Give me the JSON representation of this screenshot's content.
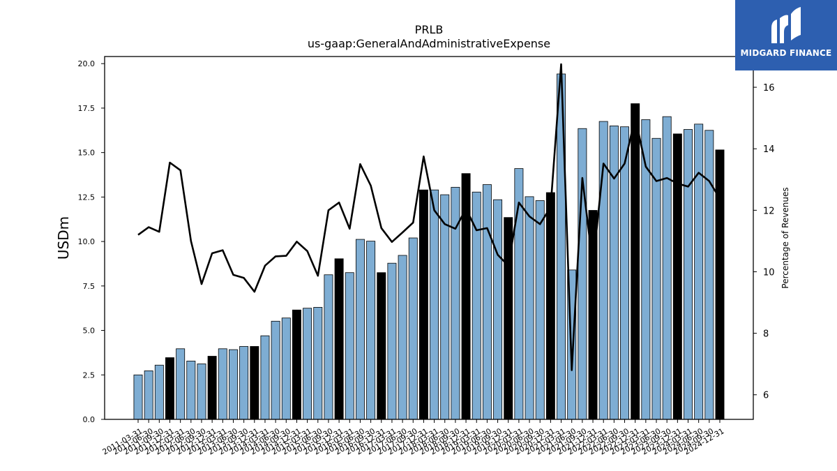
{
  "chart_data": {
    "type": "bar",
    "title": "PRLB",
    "subtitle": "us-gaap:GeneralAndAdministrativeExpense",
    "ylabel": "USDm",
    "y2label": "Percentage of Revenues",
    "ylim": [
      0,
      20.4
    ],
    "y2lim": [
      5.2,
      17.0
    ],
    "yticks": [
      "0.0",
      "2.5",
      "5.0",
      "7.5",
      "10.0",
      "12.5",
      "15.0",
      "17.5",
      "20.0"
    ],
    "y2ticks": [
      "6",
      "8",
      "10",
      "12",
      "14",
      "16"
    ],
    "categories": [
      "2011-03-31",
      "2011-06-30",
      "2011-09-30",
      "2011-12-31",
      "2012-03-31",
      "2012-06-30",
      "2012-09-30",
      "2012-12-31",
      "2013-03-31",
      "2013-06-30",
      "2013-09-30",
      "2013-12-31",
      "2014-03-31",
      "2014-06-30",
      "2014-09-30",
      "2014-12-31",
      "2015-03-31",
      "2015-06-30",
      "2015-09-30",
      "2015-12-31",
      "2016-03-31",
      "2016-06-30",
      "2016-09-30",
      "2016-12-31",
      "2017-03-31",
      "2017-06-30",
      "2017-09-30",
      "2017-12-31",
      "2018-03-31",
      "2018-06-30",
      "2018-09-30",
      "2018-12-31",
      "2019-03-31",
      "2019-06-30",
      "2019-09-30",
      "2019-12-31",
      "2020-03-31",
      "2020-06-30",
      "2020-09-30",
      "2020-12-31",
      "2021-03-31",
      "2021-06-30",
      "2021-09-30",
      "2021-12-31",
      "2022-03-31",
      "2022-06-30",
      "2022-09-30",
      "2022-12-31",
      "2023-03-31",
      "2023-06-30",
      "2023-09-30",
      "2023-12-31",
      "2024-03-31",
      "2024-06-30",
      "2024-09-30",
      "2024-12-31"
    ],
    "series": [
      {
        "type": "bar",
        "values": [
          2.5,
          2.73,
          3.05,
          3.47,
          3.97,
          3.28,
          3.12,
          3.55,
          3.97,
          3.92,
          4.1,
          4.1,
          4.7,
          5.52,
          5.7,
          6.15,
          6.25,
          6.3,
          8.13,
          9.03,
          8.25,
          10.12,
          10.02,
          8.25,
          8.78,
          9.22,
          10.2,
          12.9,
          12.9,
          12.63,
          13.05,
          13.82,
          12.78,
          13.2,
          12.35,
          11.35,
          14.1,
          12.52,
          12.3,
          12.75,
          19.42,
          8.4,
          16.35,
          11.75,
          16.75,
          16.5,
          16.45,
          17.75,
          16.85,
          15.8,
          17.02,
          16.05,
          16.3,
          16.6,
          16.25,
          15.15
        ],
        "highlight_color": "#000000",
        "color": "#7eadd3"
      },
      {
        "type": "line",
        "values": [
          11.2,
          11.45,
          11.3,
          13.55,
          13.3,
          11.0,
          9.6,
          10.6,
          10.7,
          9.9,
          9.8,
          9.35,
          10.2,
          10.5,
          10.52,
          10.98,
          10.67,
          9.87,
          12.0,
          12.25,
          11.4,
          13.5,
          12.8,
          11.42,
          10.97,
          11.28,
          11.6,
          13.75,
          12.0,
          11.55,
          11.4,
          12.05,
          11.35,
          11.42,
          10.55,
          10.2,
          12.25,
          11.8,
          11.55,
          12.1,
          16.75,
          6.8,
          13.05,
          10.2,
          13.52,
          13.03,
          13.52,
          15.02,
          13.42,
          12.95,
          13.05,
          12.87,
          12.77,
          13.22,
          12.95,
          12.38
        ],
        "color": "#000000"
      }
    ],
    "highlight_indices": [
      3,
      7,
      11,
      15,
      19,
      23,
      27,
      31,
      35,
      39,
      43,
      47,
      51,
      55
    ],
    "grid": false,
    "legend": "none"
  },
  "logo": {
    "text": "MIDGARD FINANCE",
    "bg_color": "#2d5fb0"
  }
}
